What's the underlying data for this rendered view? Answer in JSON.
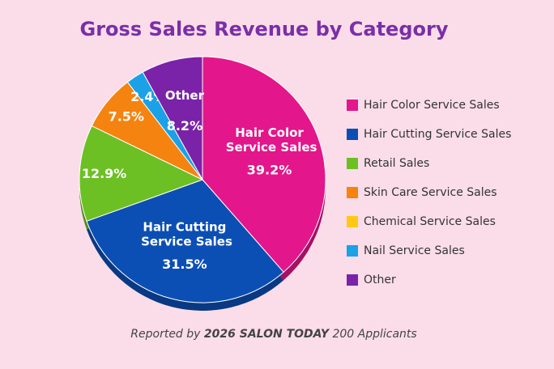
{
  "chart_data": {
    "type": "pie",
    "title": "Gross Sales Revenue by Category",
    "categories": [
      "Hair Color Service Sales",
      "Hair Cutting Service Sales",
      "Retail Sales",
      "Skin Care Service Sales",
      "Chemical Service Sales",
      "Nail Service Sales",
      "Other"
    ],
    "values": [
      39.2,
      31.5,
      12.9,
      7.5,
      0,
      2.4,
      8.2
    ],
    "value_labels": [
      "39.2%",
      "31.5%",
      "12.9%",
      "7.5%",
      null,
      "2.4%",
      "8.2%"
    ],
    "colors": [
      "#e3168b",
      "#0c4fb4",
      "#6cc024",
      "#f5830f",
      "#ffc814",
      "#1aa1e6",
      "#7a22a8"
    ],
    "legend": "right",
    "footnote": [
      "Reported by ",
      "2026 SALON TODAY",
      " 200 Applicants"
    ]
  }
}
